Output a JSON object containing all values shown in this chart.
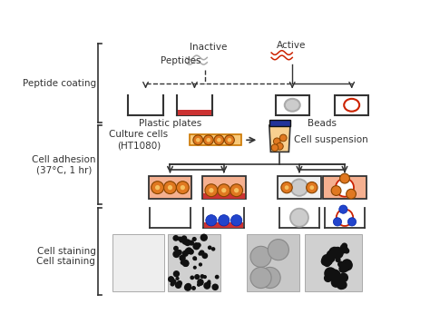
{
  "label_peptide_coating": "Peptide coating",
  "label_cell_adhesion": "Cell adhesion\n(37°C, 1 hr)",
  "label_cell_staining": "Cell staining",
  "label_inactive": "Inactive",
  "label_active": "Active",
  "label_peptides": "Peptides",
  "label_plastic_plates": "Plastic plates",
  "label_beads": "Beads",
  "label_culture_cells": "Culture cells\n(HT1080)",
  "label_cell_suspension": "Cell suspension",
  "inactive_color": "#aaaaaa",
  "active_color": "#cc2200",
  "plate_red_fill": "#cc3333",
  "cell_orange": "#e07820",
  "cell_inner": "#f5c060",
  "salmon_fill": "#f5b090",
  "blue_stain": "#2244cc",
  "bracket_color": "#333333",
  "text_color": "#333333",
  "font_size": 7.5
}
